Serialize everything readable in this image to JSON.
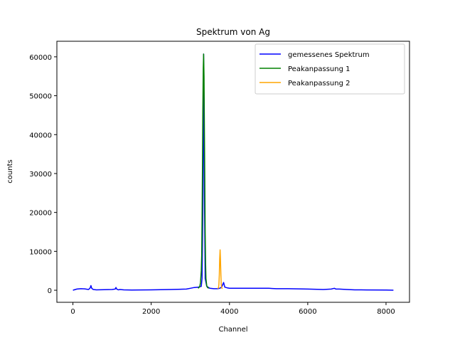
{
  "chart_data": {
    "type": "line",
    "title": "Spektrum von Ag",
    "xlabel": "Channel",
    "ylabel": "counts",
    "xlim": [
      -410,
      8600
    ],
    "ylim": [
      -3100,
      64000
    ],
    "xticks": [
      0,
      2000,
      4000,
      6000,
      8000
    ],
    "yticks": [
      0,
      10000,
      20000,
      30000,
      40000,
      50000,
      60000
    ],
    "grid": false,
    "legend": "top-right",
    "series": [
      {
        "name": "gemessenes Spektrum",
        "color": "#0000ff",
        "x": [
          0,
          100,
          200,
          300,
          400,
          440,
          460,
          480,
          520,
          600,
          800,
          1000,
          1080,
          1100,
          1120,
          1160,
          1200,
          1300,
          1500,
          2000,
          2500,
          2900,
          3000,
          3100,
          3200,
          3280,
          3300,
          3320,
          3340,
          3360,
          3380,
          3420,
          3500,
          3600,
          3700,
          3750,
          3800,
          3830,
          3850,
          3880,
          3950,
          4000,
          4500,
          5000,
          5200,
          5500,
          6000,
          6400,
          6600,
          6680,
          6720,
          6800,
          7000,
          7200,
          7500,
          8000,
          8190
        ],
        "y": [
          0,
          300,
          400,
          350,
          200,
          600,
          1200,
          500,
          200,
          100,
          150,
          200,
          300,
          700,
          300,
          100,
          200,
          100,
          50,
          100,
          200,
          300,
          500,
          700,
          800,
          1000,
          3000,
          20000,
          60700,
          25000,
          3000,
          1000,
          500,
          400,
          400,
          500,
          800,
          1500,
          2000,
          800,
          600,
          500,
          500,
          500,
          400,
          400,
          300,
          200,
          300,
          500,
          300,
          300,
          200,
          100,
          80,
          50,
          0
        ]
      },
      {
        "name": "Peakanpassung 1",
        "color": "#008000",
        "x": [
          3200,
          3240,
          3260,
          3280,
          3290,
          3300,
          3310,
          3320,
          3330,
          3340,
          3350,
          3360,
          3370,
          3380,
          3390,
          3400,
          3420,
          3440,
          3470
        ],
        "y": [
          500,
          900,
          2000,
          5000,
          9000,
          18000,
          32000,
          46000,
          57000,
          60700,
          55000,
          42000,
          28000,
          15000,
          7000,
          3000,
          1200,
          700,
          500
        ]
      },
      {
        "name": "Peakanpassung 2",
        "color": "#ffa500",
        "x": [
          3700,
          3720,
          3730,
          3740,
          3750,
          3760,
          3770,
          3780,
          3790,
          3800,
          3820
        ],
        "y": [
          400,
          700,
          1500,
          4000,
          8000,
          10400,
          8000,
          4000,
          1500,
          600,
          400
        ]
      }
    ]
  }
}
